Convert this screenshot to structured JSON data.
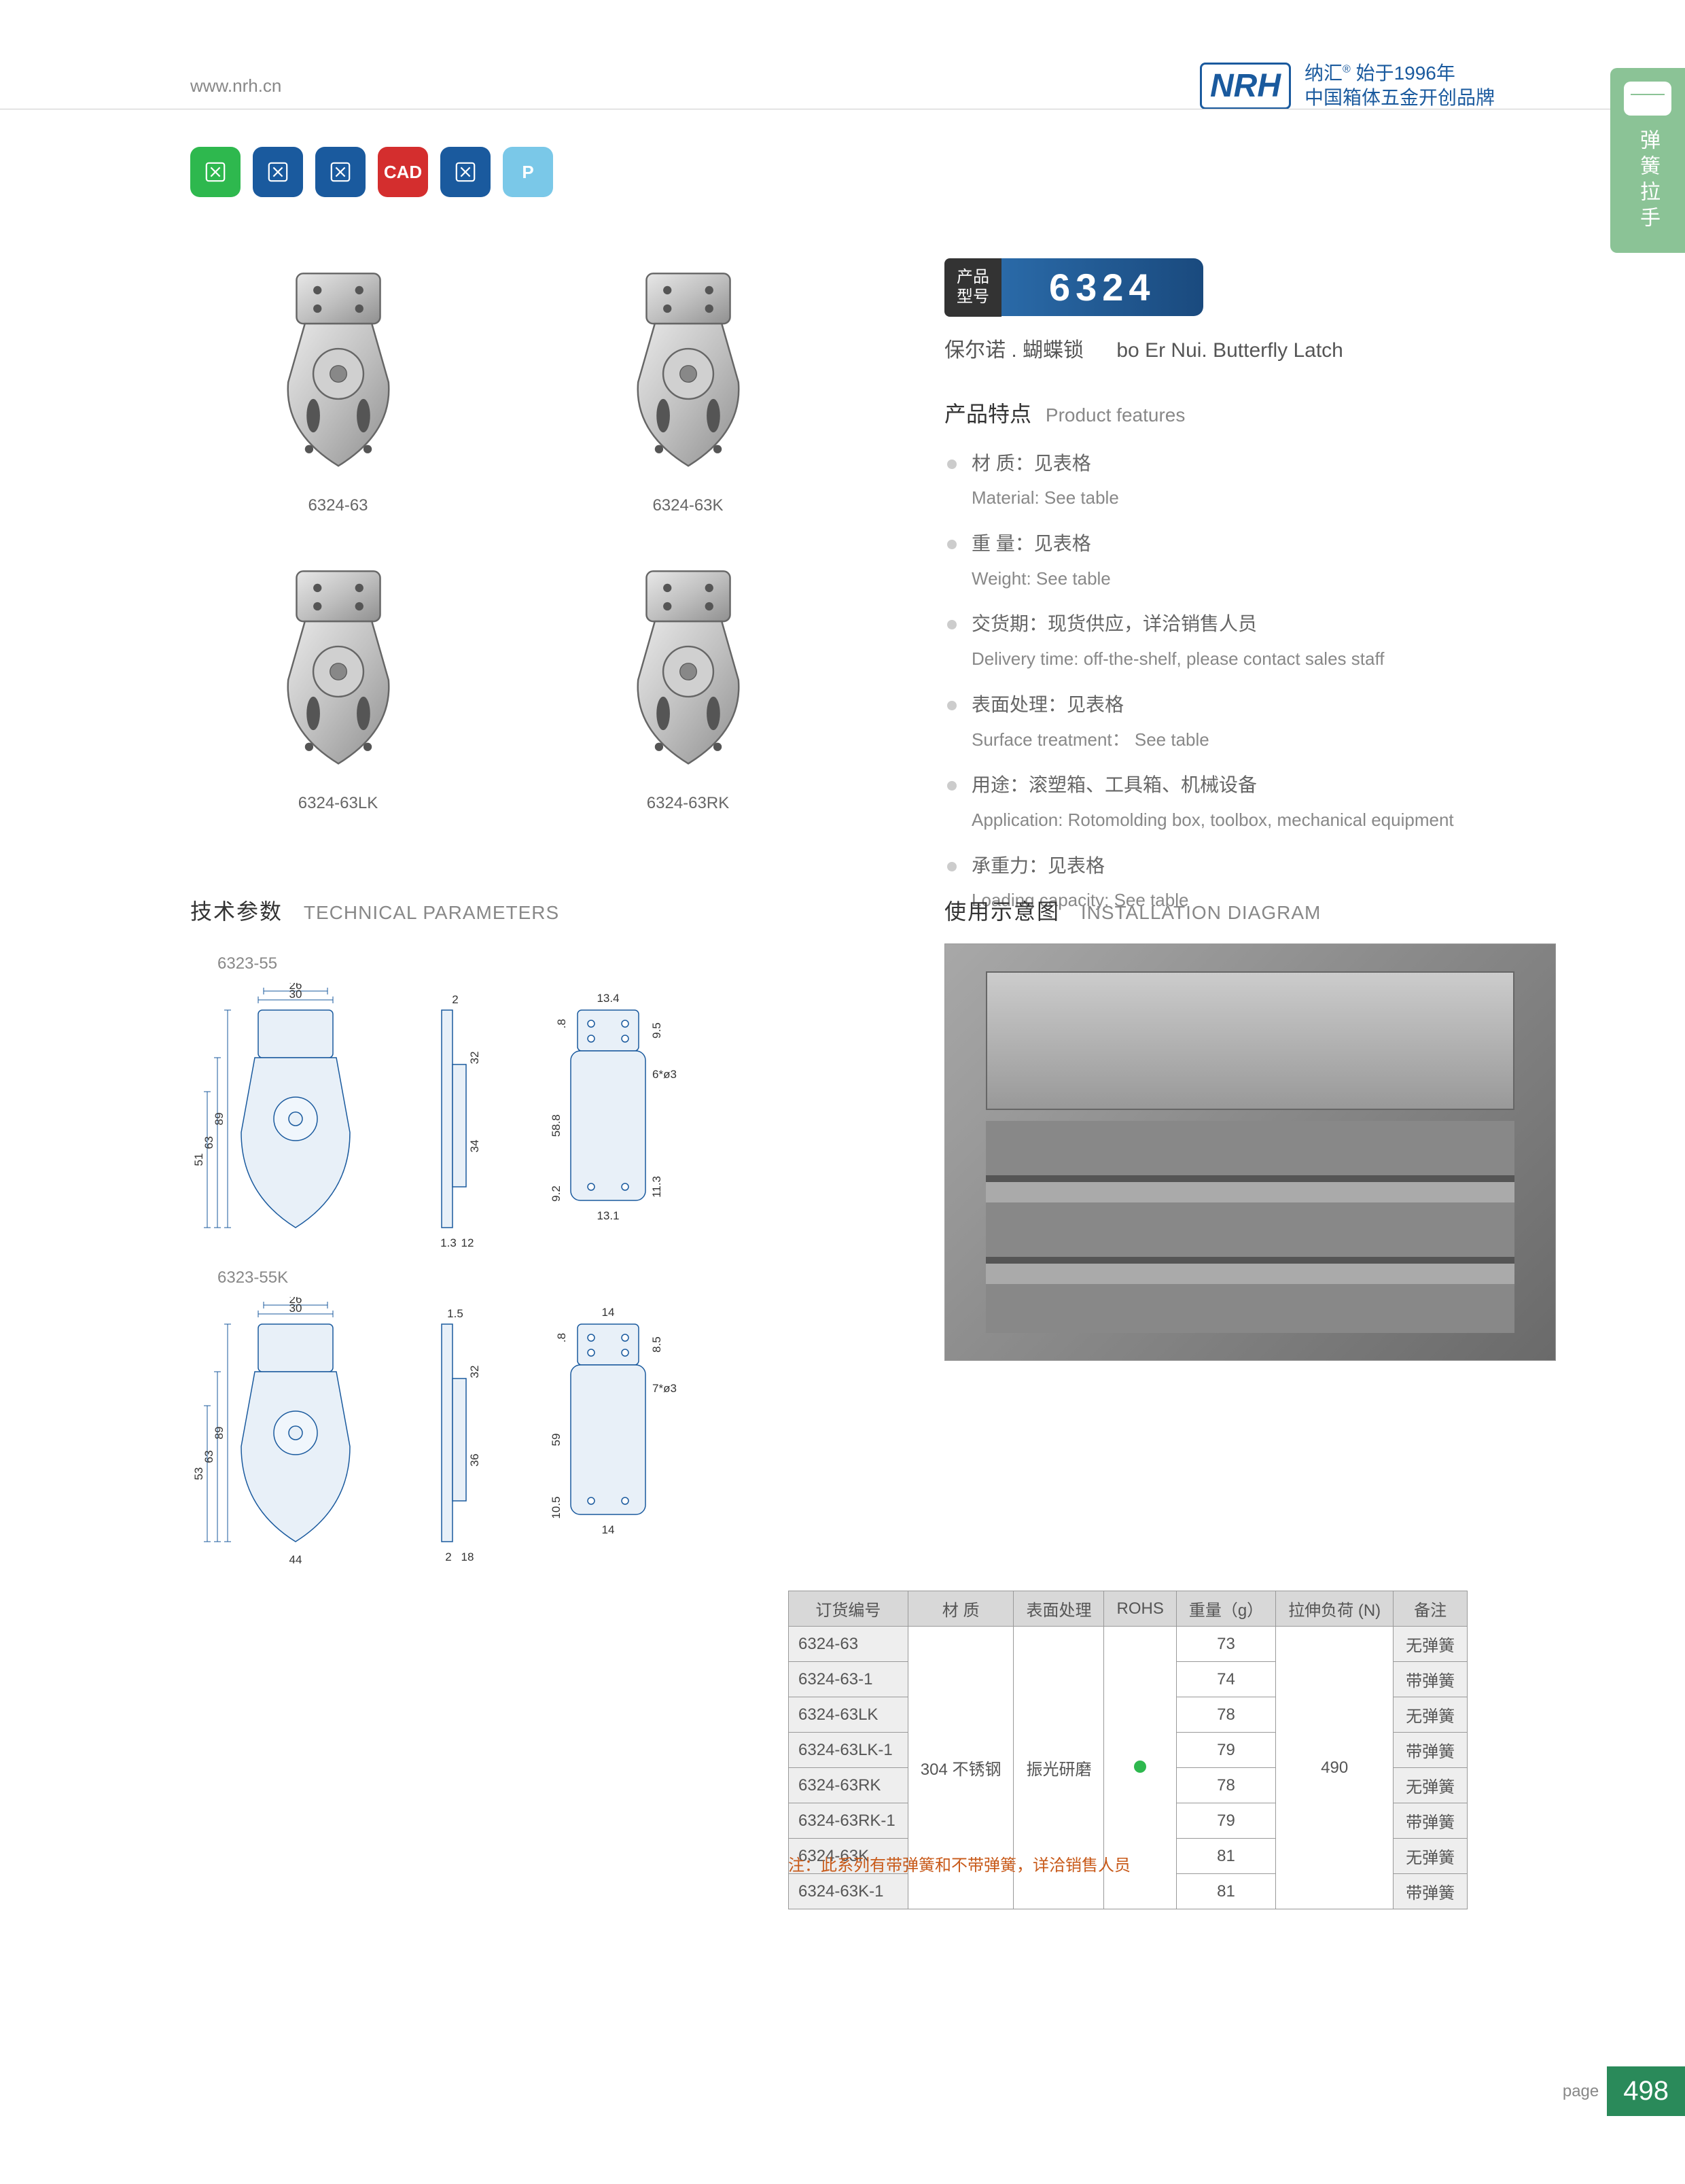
{
  "header": {
    "url": "www.nrh.cn",
    "logo": "NRH",
    "brand_line1": "纳汇",
    "brand_line1b": "始于1996年",
    "brand_line2": "中国箱体五金开创品牌"
  },
  "side_tab": "弹簧拉手",
  "icons": [
    {
      "bg": "#2eb84e",
      "name": "eco-icon"
    },
    {
      "bg": "#1a5a9e",
      "name": "tools-icon"
    },
    {
      "bg": "#1a5a9e",
      "name": "spring-icon"
    },
    {
      "bg": "#d42e2e",
      "name": "cad-icon",
      "text": "CAD"
    },
    {
      "bg": "#1a5a9e",
      "name": "screw-icon"
    },
    {
      "bg": "#7ac8e8",
      "name": "p-icon",
      "text": "P"
    }
  ],
  "products": [
    {
      "label": "6324-63"
    },
    {
      "label": "6324-63K"
    },
    {
      "label": "6324-63LK"
    },
    {
      "label": "6324-63RK"
    }
  ],
  "model": {
    "label_cn": "产品\n型号",
    "number": "6324"
  },
  "product_name": {
    "cn": "保尔诺 . 蝴蝶锁",
    "en": "bo Er Nui. Butterfly Latch"
  },
  "features_title": {
    "cn": "产品特点",
    "en": "Product features"
  },
  "features": [
    {
      "cn": "材  质：见表格",
      "en": "Material: See table"
    },
    {
      "cn": "重  量：见表格",
      "en": "Weight: See table"
    },
    {
      "cn": "交货期：现货供应，详洽销售人员",
      "en": "Delivery time: off-the-shelf, please contact sales staff"
    },
    {
      "cn": "表面处理：见表格",
      "en": "Surface treatment： See table"
    },
    {
      "cn": "用途：滚塑箱、工具箱、机械设备",
      "en": "Application: Rotomolding box, toolbox, mechanical equipment"
    },
    {
      "cn": "承重力：见表格",
      "en": "Loading capacity: See table"
    }
  ],
  "tech_title": {
    "cn": "技术参数",
    "en": "TECHNICAL PARAMETERS"
  },
  "install_title": {
    "cn": "使用示意图",
    "en": "INSTALLATION DIAGRAM"
  },
  "drawings": [
    {
      "label": "6323-55",
      "dims": {
        "w1": "30",
        "w2": "26",
        "h1": "89",
        "h2": "63",
        "h3": "51",
        "h4": "32",
        "h5": "34",
        "t1": "2",
        "t2": "1.3",
        "t3": "12",
        "sw": "13.4",
        "sh": "9.5",
        "sh2": "58.8",
        "sh3": "9.2",
        "sh4": "11.3",
        "sd": "6*ø3",
        "sb": "13.1",
        "st": ".8"
      }
    },
    {
      "label": "6323-55K",
      "dims": {
        "w1": "30",
        "w2": "26",
        "h1": "89",
        "h2": "63",
        "h3": "53",
        "h4": "32",
        "h5": "36",
        "t1": "1.5",
        "t2": "2",
        "t3": "18",
        "w3": "44",
        "sw": "14",
        "sh": "8.5",
        "sh2": "59",
        "sh3": "10.5",
        "sd": "7*ø3",
        "sb": "14",
        "st": ".8"
      }
    }
  ],
  "table": {
    "headers": [
      "订货编号",
      "材    质",
      "表面处理",
      "ROHS",
      "重量（g）",
      "拉伸负荷 (N)",
      "备注"
    ],
    "material": "304 不锈钢",
    "surface": "振光研磨",
    "load": "490",
    "rows": [
      {
        "part": "6324-63",
        "weight": "73",
        "remark": "无弹簧"
      },
      {
        "part": "6324-63-1",
        "weight": "74",
        "remark": "带弹簧"
      },
      {
        "part": "6324-63LK",
        "weight": "78",
        "remark": "无弹簧"
      },
      {
        "part": "6324-63LK-1",
        "weight": "79",
        "remark": "带弹簧"
      },
      {
        "part": "6324-63RK",
        "weight": "78",
        "remark": "无弹簧"
      },
      {
        "part": "6324-63RK-1",
        "weight": "79",
        "remark": "带弹簧"
      },
      {
        "part": "6324-63K",
        "weight": "81",
        "remark": "无弹簧"
      },
      {
        "part": "6324-63K-1",
        "weight": "81",
        "remark": "带弹簧"
      }
    ],
    "note": "注：此系列有带弹簧和不带弹簧，详洽销售人员"
  },
  "footer": {
    "label": "page",
    "num": "498"
  }
}
